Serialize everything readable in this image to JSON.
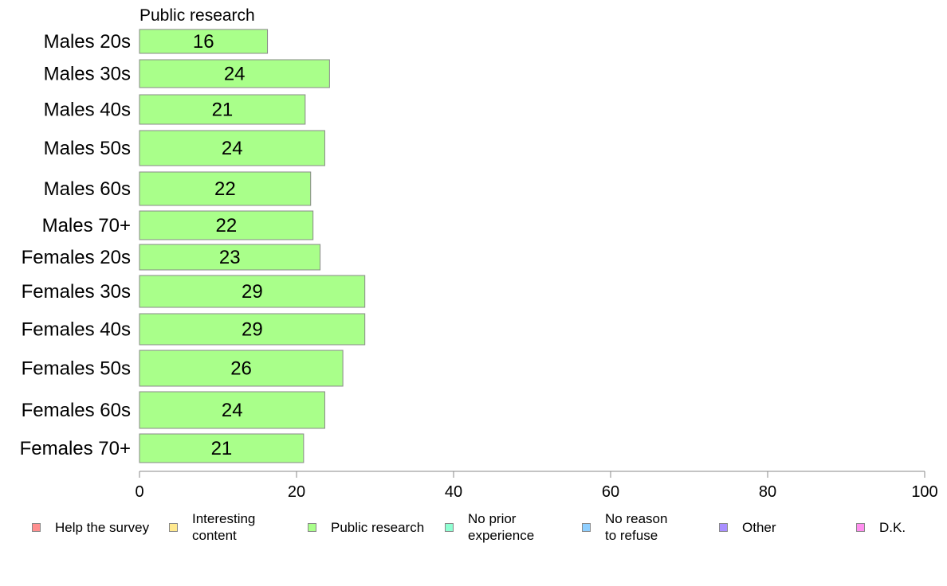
{
  "chart_data": {
    "type": "bar",
    "orientation": "horizontal",
    "title": "Public research",
    "categories": [
      "Males 20s",
      "Males 30s",
      "Males 40s",
      "Males 50s",
      "Males 60s",
      "Males 70+",
      "Females 20s",
      "Females 30s",
      "Females 40s",
      "Females 50s",
      "Females 60s",
      "Females 70+"
    ],
    "series": [
      {
        "name": "Public research",
        "color": "#a9ff8a",
        "values": [
          16.3,
          24.2,
          21.1,
          23.6,
          21.8,
          22.1,
          23.0,
          28.7,
          28.7,
          25.9,
          23.6,
          20.9
        ],
        "labels": [
          "16",
          "24",
          "21",
          "24",
          "22",
          "22",
          "23",
          "29",
          "29",
          "26",
          "24",
          "21"
        ]
      }
    ],
    "xlim": [
      0,
      100
    ],
    "xticks": [
      0,
      20,
      40,
      60,
      80,
      100
    ],
    "xtick_labels": [
      "0",
      "20",
      "40",
      "60",
      "80",
      "100"
    ],
    "grid": false,
    "legend_position": "bottom",
    "legend": [
      {
        "label": "Help the survey",
        "color": "#ff8f8f"
      },
      {
        "label": "Interesting\ncontent",
        "color": "#ffe98f"
      },
      {
        "label": "Public research",
        "color": "#a9ff8a"
      },
      {
        "label": "No prior\nexperience",
        "color": "#8fffd2"
      },
      {
        "label": "No reason\nto refuse",
        "color": "#8fcfff"
      },
      {
        "label": "Other",
        "color": "#a98fff"
      },
      {
        "label": "D.K.",
        "color": "#ff8fef"
      }
    ]
  }
}
